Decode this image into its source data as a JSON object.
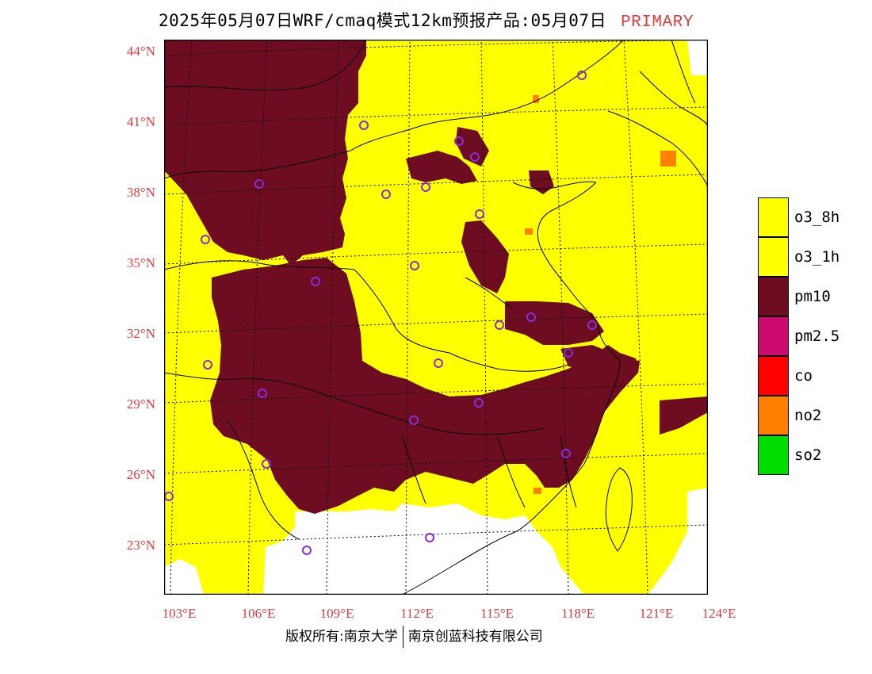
{
  "header": {
    "title": "2025年05月07日WRF/cmaq模式12km预报产品:05月07日",
    "pollutant": "PRIMARY"
  },
  "axes": {
    "lat_labels": [
      "44°N",
      "41°N",
      "38°N",
      "35°N",
      "32°N",
      "29°N",
      "26°N",
      "23°N"
    ],
    "lon_labels": [
      "103°E",
      "106°E",
      "109°E",
      "112°E",
      "115°E",
      "118°E",
      "121°E",
      "124°E"
    ]
  },
  "legend": [
    {
      "label": "o3_8h",
      "color": "#ffff00"
    },
    {
      "label": "o3_1h",
      "color": "#ffff00"
    },
    {
      "label": "pm10",
      "color": "#6e0c22"
    },
    {
      "label": "pm2.5",
      "color": "#cc0a70"
    },
    {
      "label": "co",
      "color": "#ff0000"
    },
    {
      "label": "no2",
      "color": "#ff7f00"
    },
    {
      "label": "so2",
      "color": "#00dd00"
    }
  ],
  "footer": {
    "copyright_left": "版权所有:南京大学",
    "copyright_right": "南京创蓝科技有限公司"
  },
  "colors": {
    "o3": "#ffff00",
    "pm10": "#6e0c22",
    "no2": "#ff7f00",
    "axis_label": "#e03a3a",
    "station": "#8a2be2"
  }
}
